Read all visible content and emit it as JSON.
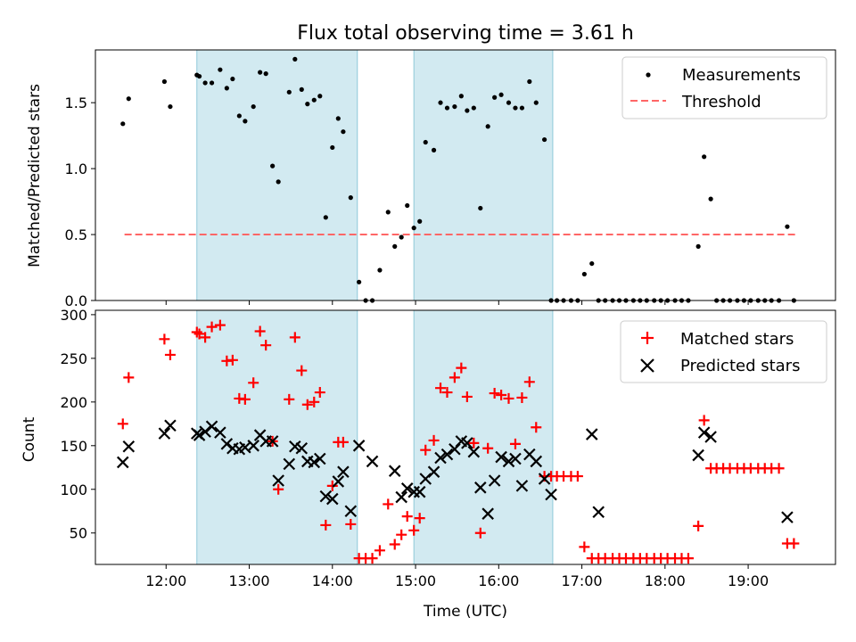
{
  "chart_data": {
    "type": "scatter",
    "title": "Flux total observing time = 3.61 h",
    "xlabel": "Time (UTC)",
    "x_ticks": [
      "12:00",
      "13:00",
      "14:00",
      "15:00",
      "16:00",
      "17:00",
      "18:00",
      "19:00"
    ],
    "x_unit": "hours UTC",
    "xlim": [
      11.15,
      20.05
    ],
    "colors": {
      "shade": "#add8e6",
      "measurement": "#000000",
      "threshold": "#ff6666",
      "matched": "#ff0000",
      "predicted": "#000000"
    },
    "shaded_intervals": [
      [
        12.37,
        14.3
      ],
      [
        14.98,
        16.65
      ]
    ],
    "panels": [
      {
        "ylabel": "Matched/Predicted stars",
        "ylim": [
          0,
          1.9
        ],
        "y_ticks": [
          "0.0",
          "0.5",
          "1.0",
          "1.5"
        ],
        "legend": {
          "placement": "top-right",
          "entries": [
            "Measurements",
            "Threshold"
          ]
        },
        "threshold": {
          "name": "Threshold",
          "value": 0.5,
          "x_range": [
            11.5,
            19.58
          ]
        },
        "measurements": {
          "name": "Measurements",
          "x": [
            11.48,
            11.55,
            11.98,
            12.05,
            12.37,
            12.4,
            12.47,
            12.55,
            12.65,
            12.73,
            12.8,
            12.88,
            12.95,
            13.05,
            13.13,
            13.2,
            13.28,
            13.35,
            13.48,
            13.55,
            13.63,
            13.7,
            13.78,
            13.85,
            13.92,
            14.0,
            14.07,
            14.13,
            14.22,
            14.32,
            14.4,
            14.48,
            14.57,
            14.67,
            14.75,
            14.83,
            14.9,
            14.98,
            15.05,
            15.12,
            15.22,
            15.3,
            15.38,
            15.47,
            15.55,
            15.62,
            15.7,
            15.78,
            15.87,
            15.95,
            16.03,
            16.12,
            16.2,
            16.28,
            16.37,
            16.45,
            16.55,
            16.63,
            16.7,
            16.78,
            16.87,
            16.95,
            17.03,
            17.12,
            17.2,
            17.28,
            17.37,
            17.45,
            17.53,
            17.62,
            17.7,
            17.78,
            17.87,
            17.95,
            18.03,
            18.12,
            18.2,
            18.28,
            18.4,
            18.47,
            18.55,
            18.62,
            18.7,
            18.78,
            18.87,
            18.95,
            19.03,
            19.12,
            19.2,
            19.28,
            19.37,
            19.47,
            19.55
          ],
          "y": [
            1.34,
            1.53,
            1.66,
            1.47,
            1.71,
            1.7,
            1.65,
            1.65,
            1.75,
            1.61,
            1.68,
            1.4,
            1.36,
            1.47,
            1.73,
            1.72,
            1.02,
            0.9,
            1.58,
            1.83,
            1.6,
            1.49,
            1.52,
            1.55,
            0.63,
            1.16,
            1.38,
            1.28,
            0.78,
            0.14,
            0.0,
            0.0,
            0.23,
            0.67,
            0.41,
            0.48,
            0.72,
            0.55,
            0.6,
            1.2,
            1.14,
            1.5,
            1.46,
            1.47,
            1.55,
            1.44,
            1.46,
            0.7,
            1.32,
            1.54,
            1.56,
            1.5,
            1.46,
            1.46,
            1.66,
            1.5,
            1.22,
            0.0,
            0.0,
            0.0,
            0.0,
            0.0,
            0.2,
            0.28,
            0.0,
            0.0,
            0.0,
            0.0,
            0.0,
            0.0,
            0.0,
            0.0,
            0.0,
            0.0,
            0.0,
            0.0,
            0.0,
            0.0,
            0.41,
            1.09,
            0.77,
            0.0,
            0.0,
            0.0,
            0.0,
            0.0,
            0.0,
            0.0,
            0.0,
            0.0,
            0.0,
            0.56,
            0.0
          ]
        }
      },
      {
        "ylabel": "Count",
        "ylim": [
          14,
          305
        ],
        "y_ticks": [
          "50",
          "100",
          "150",
          "200",
          "250",
          "300"
        ],
        "legend": {
          "placement": "top-right",
          "entries": [
            "Matched stars",
            "Predicted stars"
          ]
        },
        "matched": {
          "name": "Matched stars",
          "x": [
            11.48,
            11.55,
            11.98,
            12.05,
            12.37,
            12.4,
            12.47,
            12.55,
            12.65,
            12.73,
            12.8,
            12.88,
            12.95,
            13.05,
            13.13,
            13.2,
            13.28,
            13.35,
            13.48,
            13.55,
            13.63,
            13.7,
            13.78,
            13.85,
            13.92,
            14.0,
            14.07,
            14.13,
            14.22,
            14.32,
            14.4,
            14.48,
            14.57,
            14.67,
            14.75,
            14.83,
            14.9,
            14.98,
            15.05,
            15.12,
            15.22,
            15.3,
            15.38,
            15.47,
            15.55,
            15.62,
            15.7,
            15.78,
            15.87,
            15.95,
            16.03,
            16.12,
            16.2,
            16.28,
            16.37,
            16.45,
            16.55,
            16.63,
            16.7,
            16.78,
            16.87,
            16.95,
            17.03,
            17.12,
            17.2,
            17.28,
            17.37,
            17.45,
            17.53,
            17.62,
            17.7,
            17.78,
            17.87,
            17.95,
            18.03,
            18.12,
            18.2,
            18.28,
            18.4,
            18.47,
            18.55,
            18.62,
            18.7,
            18.78,
            18.87,
            18.95,
            19.03,
            19.12,
            19.2,
            19.28,
            19.37,
            19.47,
            19.55
          ],
          "y": [
            175,
            228,
            272,
            254,
            280,
            278,
            274,
            286,
            288,
            247,
            248,
            204,
            203,
            222,
            281,
            265,
            155,
            100,
            203,
            274,
            236,
            197,
            200,
            211,
            59,
            104,
            154,
            154,
            60,
            21,
            21,
            21,
            30,
            83,
            37,
            48,
            69,
            53,
            67,
            145,
            156,
            216,
            211,
            228,
            239,
            206,
            153,
            50,
            147,
            210,
            208,
            204,
            152,
            205,
            223,
            171,
            115,
            115,
            115,
            115,
            115,
            115,
            34,
            21,
            21,
            21,
            21,
            21,
            21,
            21,
            21,
            21,
            21,
            21,
            21,
            21,
            21,
            21,
            58,
            179,
            124,
            124,
            124,
            124,
            124,
            124,
            124,
            124,
            124,
            124,
            124,
            38,
            38
          ]
        },
        "predicted": {
          "name": "Predicted stars",
          "x": [
            11.48,
            11.55,
            11.98,
            12.05,
            12.37,
            12.4,
            12.47,
            12.55,
            12.65,
            12.73,
            12.8,
            12.88,
            12.95,
            13.05,
            13.13,
            13.2,
            13.28,
            13.35,
            13.48,
            13.55,
            13.63,
            13.7,
            13.78,
            13.85,
            13.92,
            14.0,
            14.07,
            14.13,
            14.22,
            14.32,
            14.48,
            14.75,
            14.83,
            14.9,
            14.98,
            15.05,
            15.12,
            15.22,
            15.3,
            15.38,
            15.47,
            15.55,
            15.62,
            15.7,
            15.78,
            15.87,
            15.95,
            16.03,
            16.12,
            16.2,
            16.28,
            16.37,
            16.45,
            16.55,
            16.63,
            17.12,
            17.2,
            18.4,
            18.47,
            18.55,
            19.47
          ],
          "y": [
            131,
            149,
            164,
            173,
            164,
            162,
            166,
            172,
            165,
            152,
            147,
            146,
            148,
            150,
            162,
            155,
            155,
            110,
            129,
            149,
            147,
            132,
            131,
            135,
            92,
            89,
            109,
            120,
            75,
            150,
            132,
            121,
            91,
            101,
            97,
            97,
            112,
            120,
            136,
            140,
            146,
            155,
            153,
            143,
            102,
            72,
            110,
            137,
            132,
            135,
            104,
            140,
            132,
            112,
            94,
            163,
            74,
            139,
            165,
            160,
            68
          ]
        }
      }
    ]
  }
}
